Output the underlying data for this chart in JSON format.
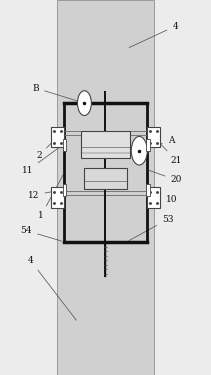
{
  "bg_color": "#ececec",
  "panel_color": "#d0d0d0",
  "line_color": "#444444",
  "dark_color": "#111111",
  "gray_color": "#777777",
  "white": "#ffffff"
}
